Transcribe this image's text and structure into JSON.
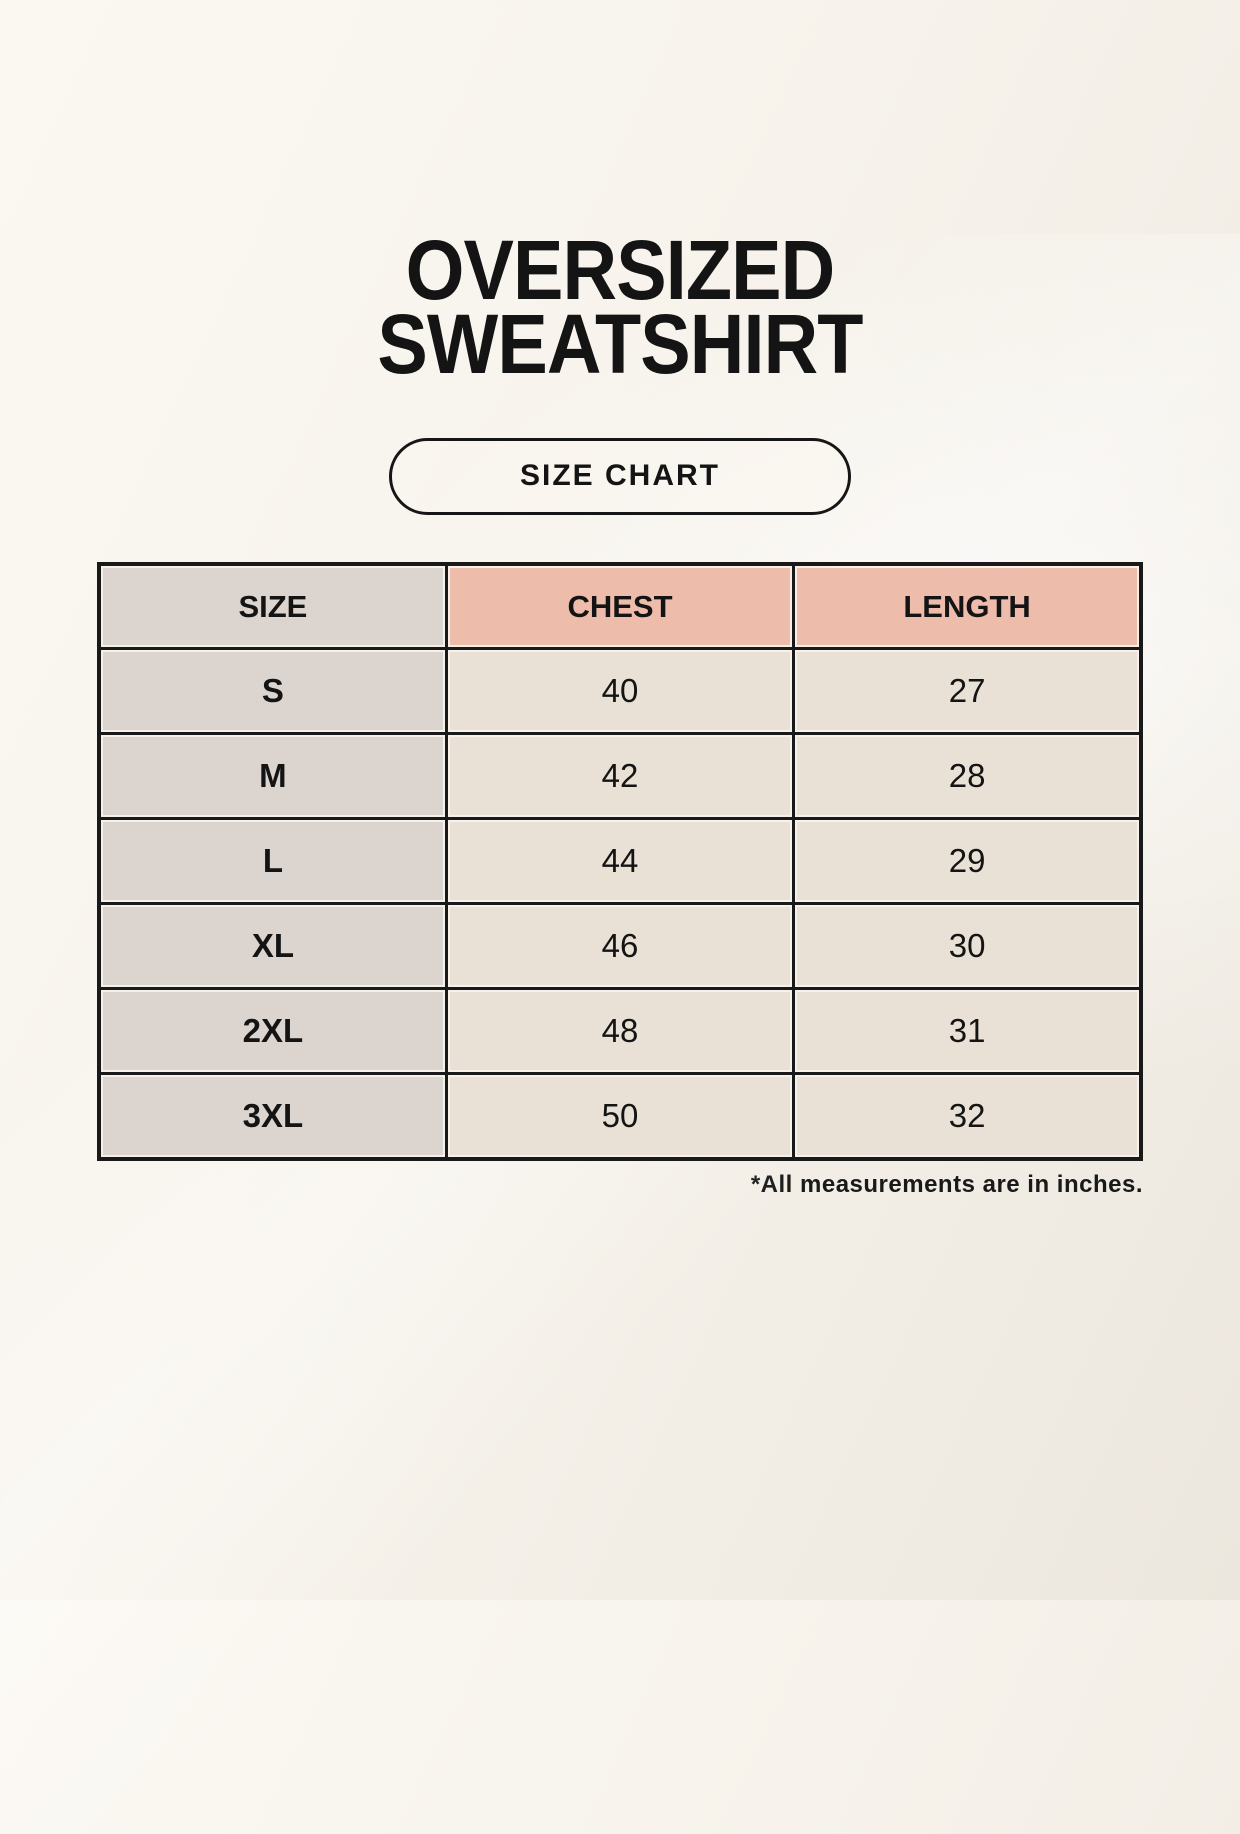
{
  "header": {
    "title_line1": "OVERSIZED",
    "title_line2": "SWEATSHIRT",
    "badge_label": "SIZE CHART"
  },
  "table": {
    "columns": [
      "SIZE",
      "CHEST",
      "LENGTH"
    ],
    "footnote": "*All measurements are in inches."
  },
  "chart_data": {
    "type": "table",
    "title": "Oversized Sweatshirt Size Chart",
    "columns": [
      "SIZE",
      "CHEST",
      "LENGTH"
    ],
    "rows": [
      {
        "size": "S",
        "chest": "40",
        "length": "27"
      },
      {
        "size": "M",
        "chest": "42",
        "length": "28"
      },
      {
        "size": "L",
        "chest": "44",
        "length": "29"
      },
      {
        "size": "XL",
        "chest": "46",
        "length": "30"
      },
      {
        "size": "2XL",
        "chest": "48",
        "length": "31"
      },
      {
        "size": "3XL",
        "chest": "50",
        "length": "32"
      }
    ],
    "units": "inches"
  },
  "colors": {
    "page_background": "#f6f2ea",
    "size_column_bg": "#dcd4cf",
    "measure_header_bg": "#eebcab",
    "value_cell_bg": "#e9e1d6",
    "grid_border": "#191919",
    "text": "#141414"
  }
}
